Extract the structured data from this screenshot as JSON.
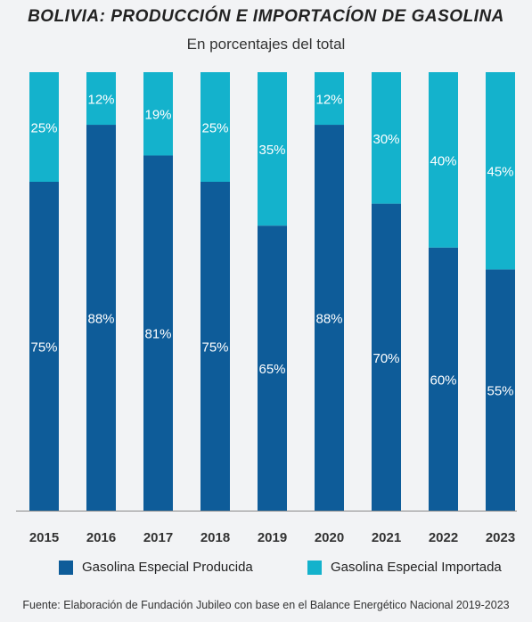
{
  "chart_data": {
    "type": "bar",
    "stacked": true,
    "title": "BOLIVIA: PRODUCCIÓN E IMPORTACÍON DE GASOLINA",
    "subtitle": "En porcentajes del total",
    "categories": [
      "2015",
      "2016",
      "2017",
      "2018",
      "2019",
      "2020",
      "2021",
      "2022",
      "2023"
    ],
    "series": [
      {
        "name": "Gasolina Especial Producida",
        "values": [
          75,
          88,
          81,
          75,
          65,
          88,
          70,
          60,
          55
        ],
        "labels": [
          "75%",
          "88%",
          "81%",
          "75%",
          "65%",
          "88%",
          "70%",
          "60%",
          "55%"
        ],
        "color": "#0e5c99"
      },
      {
        "name": "Gasolina Especial Importada",
        "values": [
          25,
          12,
          19,
          25,
          35,
          12,
          30,
          40,
          45
        ],
        "labels": [
          "25%",
          "12%",
          "19%",
          "25%",
          "35%",
          "12%",
          "30%",
          "40%",
          "45%"
        ],
        "color": "#14b2cc"
      }
    ],
    "ylim": [
      0,
      100
    ],
    "grid": false,
    "legend_position": "bottom",
    "source": "Fuente: Elaboración de Fundación Jubileo con base en el Balance Energético Nacional 2019-2023"
  }
}
